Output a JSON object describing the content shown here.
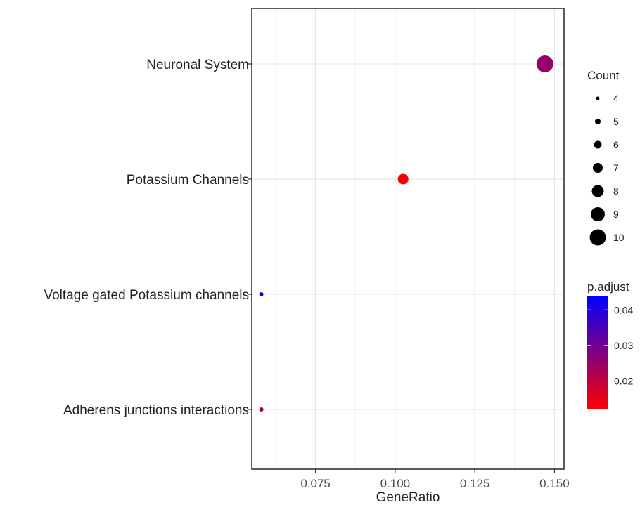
{
  "chart_data": {
    "type": "scatter",
    "title": "",
    "xlabel": "GeneRatio",
    "ylabel": "",
    "xlim": [
      0.055,
      0.153
    ],
    "x_ticks": [
      0.075,
      0.1,
      0.125,
      0.15
    ],
    "x_tick_labels": [
      "0.075",
      "0.100",
      "0.125",
      "0.150"
    ],
    "categories": [
      "Neuronal System",
      "Potassium Channels",
      "Voltage gated Potassium channels",
      "Adherens junctions interactions"
    ],
    "points": [
      {
        "category": "Neuronal System",
        "x": 0.147,
        "count": 10,
        "p_adjust": 0.025
      },
      {
        "category": "Potassium Channels",
        "x": 0.1025,
        "count": 7,
        "p_adjust": 0.013
      },
      {
        "category": "Voltage gated Potassium channels",
        "x": 0.058,
        "count": 4,
        "p_adjust": 0.042
      },
      {
        "category": "Adherens junctions interactions",
        "x": 0.058,
        "count": 4,
        "p_adjust": 0.025
      }
    ],
    "grid": true,
    "size_legend": {
      "title": "Count",
      "values": [
        4,
        5,
        6,
        7,
        8,
        9,
        10
      ],
      "labels": [
        "4",
        "5",
        "6",
        "7",
        "8",
        "9",
        "10"
      ],
      "placement": "right"
    },
    "color_legend": {
      "title": "p.adjust",
      "range": [
        0.012,
        0.044
      ],
      "ticks": [
        0.02,
        0.03,
        0.04
      ],
      "tick_labels": [
        "0.02",
        "0.03",
        "0.04"
      ],
      "low_color": "#ff0000",
      "high_color": "#0000ff",
      "placement": "right"
    }
  }
}
